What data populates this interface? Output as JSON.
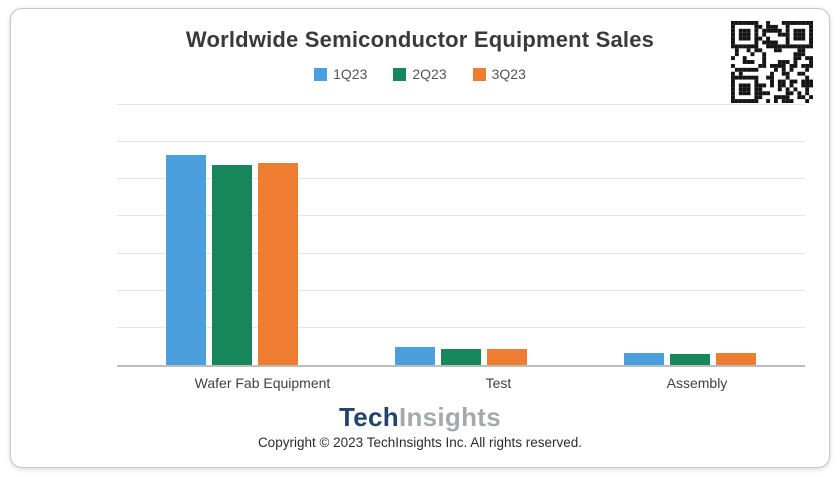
{
  "card": {
    "title": "Worldwide Semiconductor Equipment Sales",
    "logo": {
      "part1": "Tech",
      "part2": "Insights"
    },
    "copyright": "Copyright © 2023 TechInsights Inc.  All rights reserved."
  },
  "chart_data": {
    "type": "bar",
    "title": "Worldwide Semiconductor Equipment Sales",
    "categories": [
      "Wafer Fab Equipment",
      "Test",
      "Assembly"
    ],
    "series": [
      {
        "name": "1Q23",
        "color": "#4A9FDC",
        "values": [
          22.6,
          1.9,
          1.3
        ]
      },
      {
        "name": "2Q23",
        "color": "#17875B",
        "values": [
          21.5,
          1.7,
          1.2
        ]
      },
      {
        "name": "3Q23",
        "color": "#EE7D31",
        "values": [
          21.7,
          1.7,
          1.3
        ]
      }
    ],
    "ylim": [
      0,
      28
    ],
    "grid_step": 4,
    "grid": true,
    "legend_position": "top",
    "y_axis_labels_visible": false,
    "xlabel": "",
    "ylabel": ""
  }
}
